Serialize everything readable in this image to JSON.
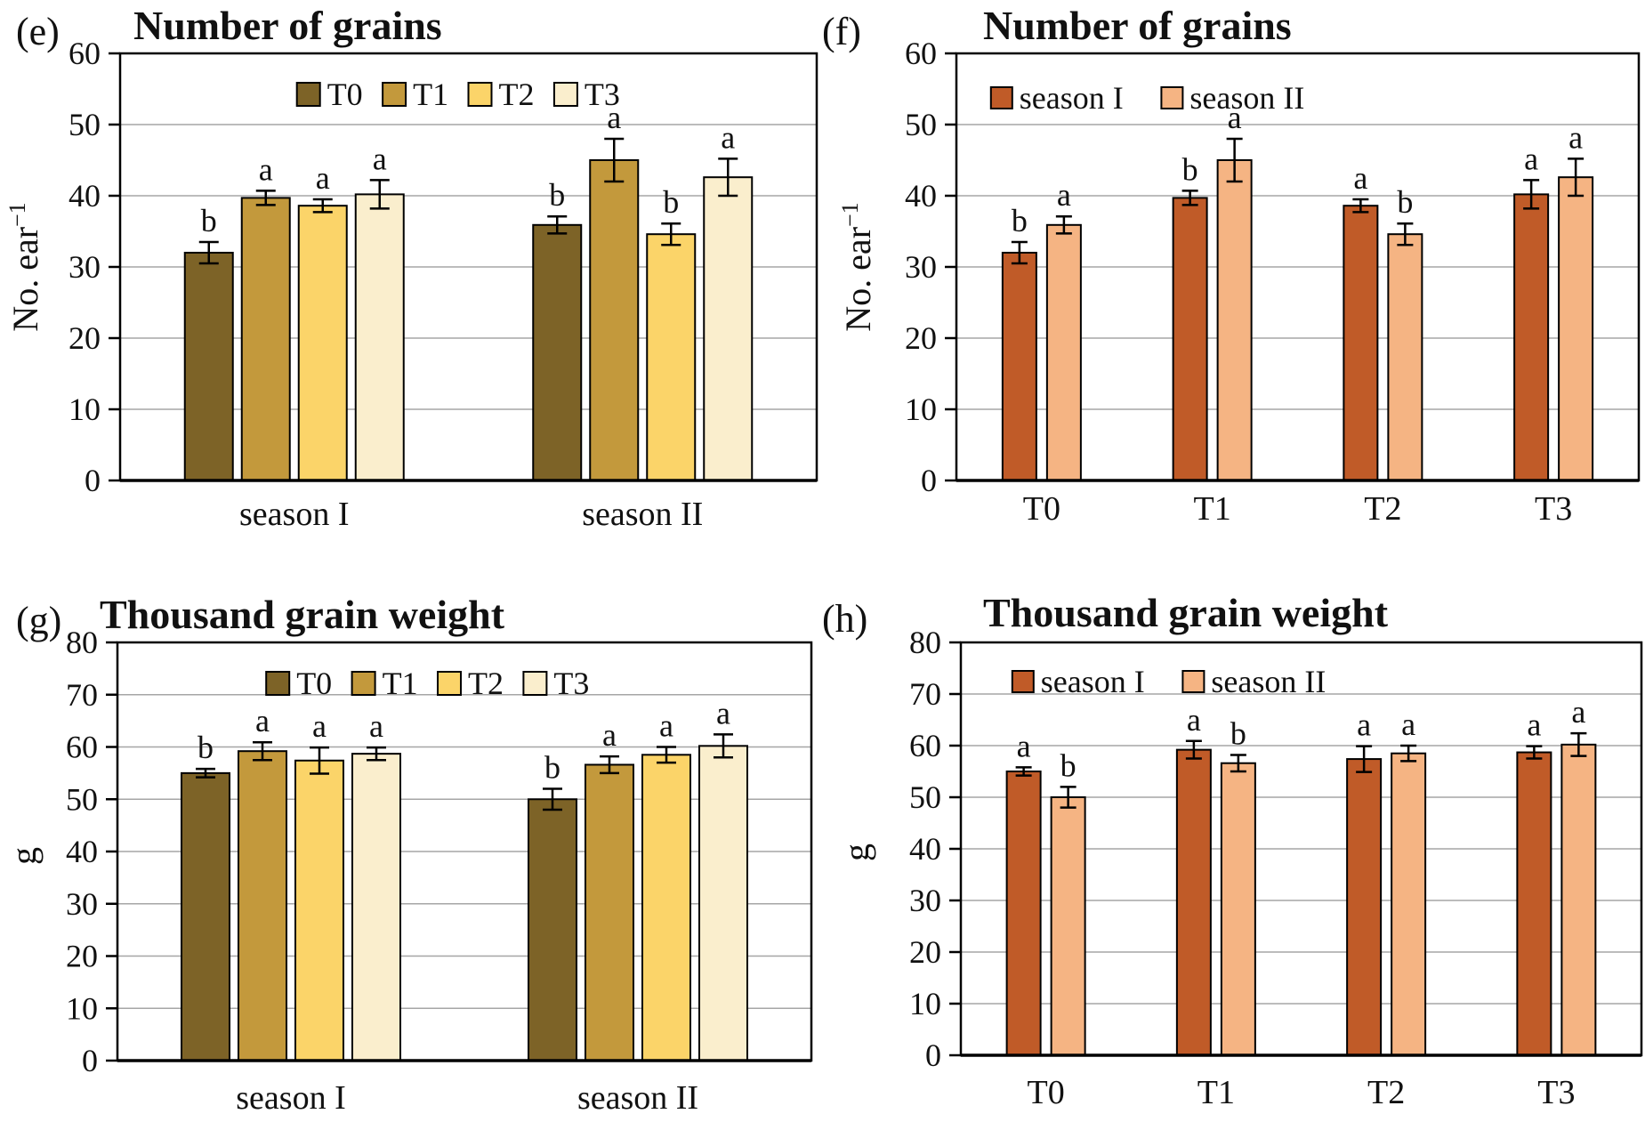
{
  "figure": {
    "background": "#ffffff",
    "description": "Four-panel bar chart figure: number of grains and thousand grain weight by treatment (T0-T3) and season (I, II), with standard-error bars and significance letters."
  },
  "colors": {
    "t0": "#7d6327",
    "t1": "#c3993c",
    "t2": "#fbd469",
    "t3": "#faeecd",
    "season1": "#c05b28",
    "season2": "#f5b483",
    "gridline": "#a6a6a6",
    "axis": "#000000"
  },
  "chart_data": [
    {
      "id": "e",
      "type": "bar",
      "panel_label": "(e)",
      "title": "Number of grains",
      "ylabel": "No. ear",
      "ylabel_superscript": "−1",
      "ylim": [
        0,
        60
      ],
      "ytick_step": 10,
      "grid": true,
      "legend_position": "top-center",
      "categories": [
        "season I",
        "season II"
      ],
      "series": [
        {
          "name": "T0",
          "color": "#7d6327",
          "values": [
            32,
            35.9
          ],
          "errors": [
            1.5,
            1.2
          ],
          "sig_letters": [
            "b",
            "b"
          ]
        },
        {
          "name": "T1",
          "color": "#c3993c",
          "values": [
            39.7,
            45
          ],
          "errors": [
            1.0,
            3.0
          ],
          "sig_letters": [
            "a",
            "a"
          ]
        },
        {
          "name": "T2",
          "color": "#fbd469",
          "values": [
            38.6,
            34.6
          ],
          "errors": [
            0.9,
            1.5
          ],
          "sig_letters": [
            "a",
            "b"
          ]
        },
        {
          "name": "T3",
          "color": "#faeecd",
          "values": [
            40.2,
            42.6
          ],
          "errors": [
            2.0,
            2.6
          ],
          "sig_letters": [
            "a",
            "a"
          ]
        }
      ]
    },
    {
      "id": "f",
      "type": "bar",
      "panel_label": "(f)",
      "title": "Number of grains",
      "ylabel": "No. ear",
      "ylabel_superscript": "−1",
      "ylim": [
        0,
        60
      ],
      "ytick_step": 10,
      "grid": true,
      "legend_position": "top-center",
      "categories": [
        "T0",
        "T1",
        "T2",
        "T3"
      ],
      "series": [
        {
          "name": "season I",
          "color": "#c05b28",
          "values": [
            32,
            39.7,
            38.6,
            40.2
          ],
          "errors": [
            1.5,
            1.0,
            0.9,
            2.0
          ],
          "sig_letters": [
            "b",
            "b",
            "a",
            "a"
          ]
        },
        {
          "name": "season II",
          "color": "#f5b483",
          "values": [
            35.9,
            45,
            34.6,
            42.6
          ],
          "errors": [
            1.2,
            3.0,
            1.5,
            2.6
          ],
          "sig_letters": [
            "a",
            "a",
            "b",
            "a"
          ]
        }
      ]
    },
    {
      "id": "g",
      "type": "bar",
      "panel_label": "(g)",
      "title": "Thousand grain weight",
      "ylabel": "g",
      "ylabel_superscript": "",
      "ylim": [
        0,
        80
      ],
      "ytick_step": 10,
      "grid": true,
      "legend_position": "top-center",
      "categories": [
        "season I",
        "season II"
      ],
      "series": [
        {
          "name": "T0",
          "color": "#7d6327",
          "values": [
            55,
            50
          ],
          "errors": [
            0.8,
            2.0
          ],
          "sig_letters": [
            "b",
            "b"
          ]
        },
        {
          "name": "T1",
          "color": "#c3993c",
          "values": [
            59.2,
            56.6
          ],
          "errors": [
            1.7,
            1.6
          ],
          "sig_letters": [
            "a",
            "a"
          ]
        },
        {
          "name": "T2",
          "color": "#fbd469",
          "values": [
            57.4,
            58.5
          ],
          "errors": [
            2.5,
            1.5
          ],
          "sig_letters": [
            "a",
            "a"
          ]
        },
        {
          "name": "T3",
          "color": "#faeecd",
          "values": [
            58.7,
            60.2
          ],
          "errors": [
            1.2,
            2.2
          ],
          "sig_letters": [
            "a",
            "a"
          ]
        }
      ]
    },
    {
      "id": "h",
      "type": "bar",
      "panel_label": "(h)",
      "title": "Thousand grain weight",
      "ylabel": "g",
      "ylabel_superscript": "",
      "ylim": [
        0,
        80
      ],
      "ytick_step": 10,
      "grid": true,
      "legend_position": "top-center",
      "categories": [
        "T0",
        "T1",
        "T2",
        "T3"
      ],
      "series": [
        {
          "name": "season I",
          "color": "#c05b28",
          "values": [
            55,
            59.2,
            57.4,
            58.7
          ],
          "errors": [
            0.8,
            1.7,
            2.5,
            1.2
          ],
          "sig_letters": [
            "a",
            "a",
            "a",
            "a"
          ]
        },
        {
          "name": "season II",
          "color": "#f5b483",
          "values": [
            50,
            56.6,
            58.5,
            60.2
          ],
          "errors": [
            2.0,
            1.6,
            1.5,
            2.2
          ],
          "sig_letters": [
            "b",
            "b",
            "a",
            "a"
          ]
        }
      ]
    }
  ]
}
